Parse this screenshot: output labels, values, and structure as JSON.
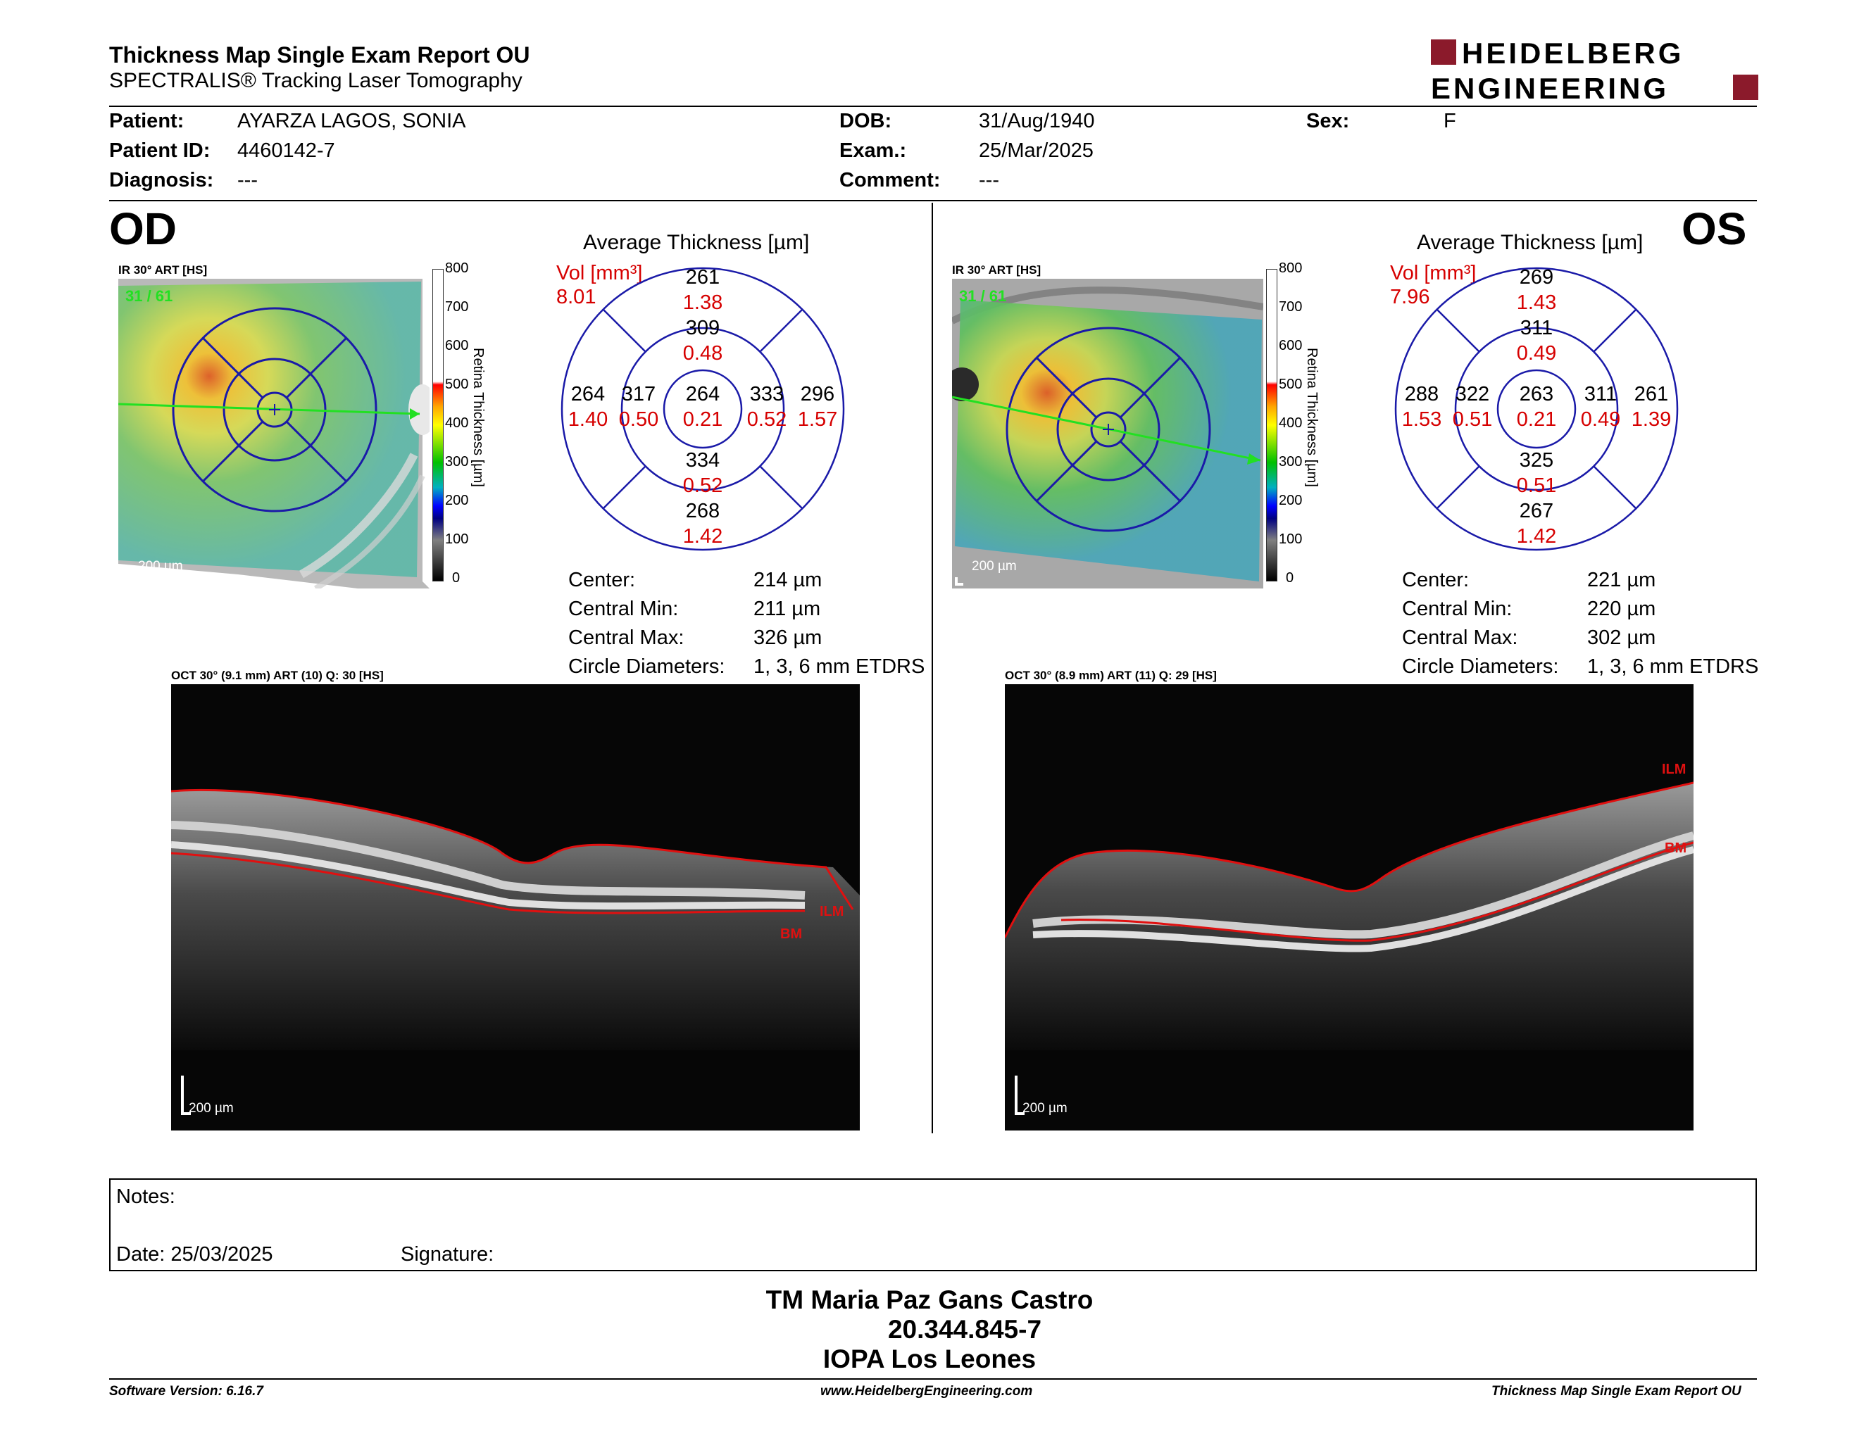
{
  "header": {
    "title": "Thickness Map Single Exam Report OU",
    "subtitle": "SPECTRALIS® Tracking Laser Tomography",
    "logo_line1": "HEIDELBERG",
    "logo_line2": "ENGINEERING"
  },
  "patient": {
    "patient_label": "Patient:",
    "patient_value": "AYARZA LAGOS, SONIA",
    "id_label": "Patient ID:",
    "id_value": "4460142-7",
    "diagnosis_label": "Diagnosis:",
    "diagnosis_value": "---",
    "dob_label": "DOB:",
    "dob_value": "31/Aug/1940",
    "exam_label": "Exam.:",
    "exam_value": "25/Mar/2025",
    "comment_label": "Comment:",
    "comment_value": "---",
    "sex_label": "Sex:",
    "sex_value": "F"
  },
  "od": {
    "eye_label": "OD",
    "ir_label": "IR 30° ART [HS]",
    "ir_count": "31 / 61",
    "scale_label": "200 µm",
    "colorbar_ticks": [
      "800",
      "700",
      "600",
      "500",
      "400",
      "300",
      "200",
      "100",
      "0"
    ],
    "colorbar_title": "Retina Thickness [µm]",
    "avg_title": "Average Thickness [µm]",
    "vol_label": "Vol [mm³]",
    "vol_value": "8.01",
    "sectors": {
      "outer_top": "261",
      "outer_top_vol": "1.38",
      "inner_top": "309",
      "inner_top_vol": "0.48",
      "outer_left": "264",
      "outer_left_vol": "1.40",
      "inner_left": "317",
      "inner_left_vol": "0.50",
      "center": "264",
      "center_vol": "0.21",
      "inner_right": "333",
      "inner_right_vol": "0.52",
      "outer_right": "296",
      "outer_right_vol": "1.57",
      "inner_bottom": "334",
      "inner_bottom_vol": "0.52",
      "outer_bottom": "268",
      "outer_bottom_vol": "1.42"
    },
    "stats": {
      "center_label": "Center:",
      "center_value": "214 µm",
      "min_label": "Central Min:",
      "min_value": "211 µm",
      "max_label": "Central Max:",
      "max_value": "326 µm",
      "circ_label": "Circle Diameters:",
      "circ_value": "1, 3, 6 mm ETDRS"
    },
    "oct_label": "OCT 30° (9.1 mm) ART (10) Q: 30 [HS]",
    "oct_ilm": "ILM",
    "oct_bm": "BM",
    "oct_scale": "200 µm"
  },
  "os": {
    "eye_label": "OS",
    "ir_label": "IR 30° ART [HS]",
    "ir_count": "31 / 61",
    "scale_label": "200 µm",
    "colorbar_ticks": [
      "800",
      "700",
      "600",
      "500",
      "400",
      "300",
      "200",
      "100",
      "0"
    ],
    "colorbar_title": "Retina Thickness [µm]",
    "avg_title": "Average Thickness [µm]",
    "vol_label": "Vol [mm³]",
    "vol_value": "7.96",
    "sectors": {
      "outer_top": "269",
      "outer_top_vol": "1.43",
      "inner_top": "311",
      "inner_top_vol": "0.49",
      "outer_left": "288",
      "outer_left_vol": "1.53",
      "inner_left": "322",
      "inner_left_vol": "0.51",
      "center": "263",
      "center_vol": "0.21",
      "inner_right": "311",
      "inner_right_vol": "0.49",
      "outer_right": "261",
      "outer_right_vol": "1.39",
      "inner_bottom": "325",
      "inner_bottom_vol": "0.51",
      "outer_bottom": "267",
      "outer_bottom_vol": "1.42"
    },
    "stats": {
      "center_label": "Center:",
      "center_value": "221 µm",
      "min_label": "Central Min:",
      "min_value": "220 µm",
      "max_label": "Central Max:",
      "max_value": "302 µm",
      "circ_label": "Circle Diameters:",
      "circ_value": "1, 3, 6 mm ETDRS"
    },
    "oct_label": "OCT 30° (8.9 mm) ART (11) Q: 29 [HS]",
    "oct_ilm": "ILM",
    "oct_bm": "BM",
    "oct_scale": "200 µm"
  },
  "notes": {
    "notes_label": "Notes:",
    "date_label": "Date: 25/03/2025",
    "signature_label": "Signature:"
  },
  "signature_block": {
    "name": "TM Maria Paz Gans Castro",
    "rut": "20.344.845-7",
    "clinic": "IOPA Los Leones"
  },
  "footer": {
    "software": "Software Version: 6.16.7",
    "website": "www.HeidelbergEngineering.com",
    "report": "Thickness Map Single Exam Report OU"
  },
  "colors": {
    "accent_red": "#d60000",
    "grid_blue": "#1a1aa8",
    "logo_red": "#8b1a2b"
  }
}
